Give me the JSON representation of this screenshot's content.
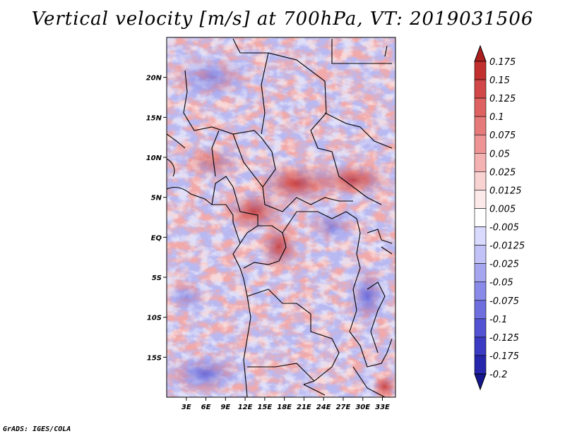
{
  "title": "Vertical velocity [m/s] at 700hPa, VT: 2019031506",
  "footer": "GrADS: IGES/COLA",
  "map": {
    "lon_range": [
      0,
      35
    ],
    "lat_range": [
      -20,
      25
    ],
    "lat_ticks": [
      {
        "value": 20,
        "label": "20N"
      },
      {
        "value": 15,
        "label": "15N"
      },
      {
        "value": 10,
        "label": "10N"
      },
      {
        "value": 5,
        "label": "5N"
      },
      {
        "value": 0,
        "label": "EQ"
      },
      {
        "value": -5,
        "label": "5S"
      },
      {
        "value": -10,
        "label": "10S"
      },
      {
        "value": -15,
        "label": "15S"
      }
    ],
    "lon_ticks": [
      {
        "value": 3,
        "label": "3E"
      },
      {
        "value": 6,
        "label": "6E"
      },
      {
        "value": 9,
        "label": "9E"
      },
      {
        "value": 12,
        "label": "12E"
      },
      {
        "value": 15,
        "label": "15E"
      },
      {
        "value": 18,
        "label": "18E"
      },
      {
        "value": 21,
        "label": "21E"
      },
      {
        "value": 24,
        "label": "24E"
      },
      {
        "value": 27,
        "label": "27E"
      },
      {
        "value": 30,
        "label": "30E"
      },
      {
        "value": 33,
        "label": "33E"
      }
    ]
  },
  "colorbar": {
    "labels": [
      "0.175",
      "0.15",
      "0.125",
      "0.1",
      "0.075",
      "0.05",
      "0.025",
      "0.0125",
      "0.005",
      "-0.005",
      "-0.0125",
      "-0.025",
      "-0.05",
      "-0.075",
      "-0.1",
      "-0.125",
      "-0.175",
      "-0.2"
    ],
    "colors": [
      "#ab1f1f",
      "#c22f2f",
      "#d24848",
      "#de6262",
      "#e67a7a",
      "#ee9494",
      "#f4b2b2",
      "#f9d2d2",
      "#fce9e9",
      "#ffffff",
      "#dadaff",
      "#c2c2f8",
      "#a6a6f0",
      "#8a8ae8",
      "#6e6ede",
      "#5252d2",
      "#3a3ac2",
      "#2626ac",
      "#16168e"
    ]
  }
}
